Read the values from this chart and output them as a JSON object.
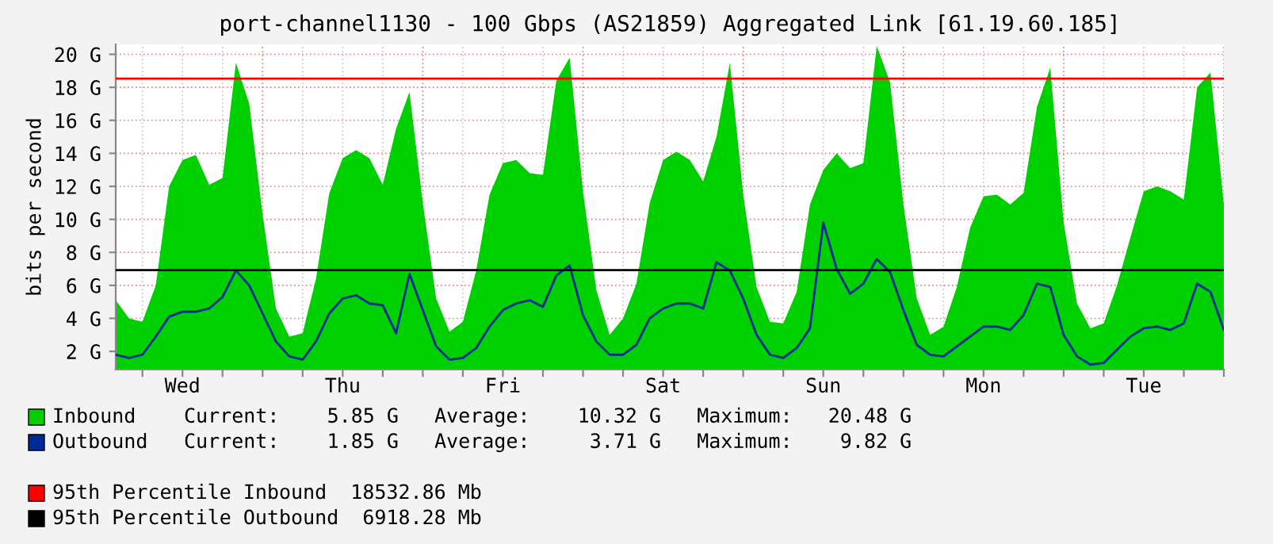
{
  "chart_data": {
    "type": "area",
    "title": "port-channel1130 - 100 Gbps (AS21859) Aggregated Link [61.19.60.185]",
    "ylabel": "bits per second",
    "categories": [
      null,
      null,
      null,
      null,
      null,
      "Wed",
      null,
      null,
      null,
      null,
      null,
      null,
      null,
      null,
      null,
      null,
      null,
      "Thu",
      null,
      null,
      null,
      null,
      null,
      null,
      null,
      null,
      null,
      null,
      null,
      "Fri",
      null,
      null,
      null,
      null,
      null,
      null,
      null,
      null,
      null,
      null,
      null,
      "Sat",
      null,
      null,
      null,
      null,
      null,
      null,
      null,
      null,
      null,
      null,
      null,
      "Sun",
      null,
      null,
      null,
      null,
      null,
      null,
      null,
      null,
      null,
      null,
      null,
      "Mon",
      null,
      null,
      null,
      null,
      null,
      null,
      null,
      null,
      null,
      null,
      null,
      "Tue",
      null,
      null,
      null,
      null,
      null,
      null
    ],
    "series": [
      {
        "name": "Inbound",
        "color": "#00cf00",
        "values": [
          5.1,
          4.0,
          3.8,
          6.0,
          12.0,
          13.6,
          13.9,
          12.1,
          12.5,
          19.5,
          17.0,
          10.3,
          4.6,
          2.9,
          3.1,
          6.4,
          11.6,
          13.7,
          14.2,
          13.7,
          12.1,
          15.5,
          17.7,
          11.0,
          5.2,
          3.2,
          3.8,
          6.9,
          11.5,
          13.4,
          13.6,
          12.8,
          12.7,
          18.4,
          19.8,
          11.7,
          5.7,
          3.0,
          4.0,
          6.1,
          11.0,
          13.6,
          14.1,
          13.6,
          12.3,
          15.0,
          19.5,
          11.5,
          5.9,
          3.8,
          3.7,
          5.6,
          10.9,
          13.0,
          14.0,
          13.1,
          13.4,
          20.5,
          18.3,
          10.9,
          5.2,
          3.0,
          3.5,
          5.9,
          9.5,
          11.4,
          11.5,
          10.9,
          11.6,
          16.8,
          19.2,
          9.8,
          4.9,
          3.4,
          3.7,
          6.0,
          8.9,
          11.7,
          12.0,
          11.7,
          11.2,
          18.0,
          18.9,
          10.9
        ]
      },
      {
        "name": "Outbound",
        "type": "line",
        "color": "#002a97",
        "values": [
          1.8,
          1.6,
          1.8,
          2.9,
          4.1,
          4.4,
          4.4,
          4.6,
          5.3,
          6.9,
          6.0,
          4.3,
          2.6,
          1.7,
          1.5,
          2.6,
          4.3,
          5.2,
          5.4,
          4.9,
          4.8,
          3.1,
          6.7,
          4.5,
          2.3,
          1.5,
          1.6,
          2.2,
          3.5,
          4.5,
          4.9,
          5.1,
          4.7,
          6.6,
          7.2,
          4.2,
          2.6,
          1.8,
          1.8,
          2.4,
          4.0,
          4.6,
          4.9,
          4.9,
          4.6,
          7.4,
          6.9,
          5.2,
          3.0,
          1.8,
          1.6,
          2.2,
          3.4,
          9.8,
          7.0,
          5.5,
          6.1,
          7.6,
          6.8,
          4.5,
          2.4,
          1.8,
          1.7,
          2.3,
          2.9,
          3.5,
          3.5,
          3.3,
          4.2,
          6.1,
          5.9,
          3.0,
          1.7,
          1.2,
          1.3,
          2.1,
          2.9,
          3.4,
          3.5,
          3.3,
          3.7,
          6.1,
          5.6,
          3.3
        ]
      }
    ],
    "annotations": [
      "Current:    5.85 G   Average:    10.32 G   Maximum:   20.48 G",
      "Current:    1.85 G   Average:     3.71 G   Maximum:    9.82 G"
    ],
    "ref_lines": [
      {
        "axis": "y",
        "value": 18.53,
        "label": "95th Percentile Inbound  18532.86 Mb",
        "color": "#ff0000"
      },
      {
        "axis": "y",
        "value": 6.92,
        "label": "95th Percentile Outbound  6918.28 Mb",
        "color": "#000000"
      }
    ],
    "ylim": [
      0.9,
      20.6
    ],
    "yticks": [
      {
        "value": 2,
        "label": "2 G"
      },
      {
        "value": 4,
        "label": "4 G"
      },
      {
        "value": 6,
        "label": "6 G"
      },
      {
        "value": 8,
        "label": "8 G"
      },
      {
        "value": 10,
        "label": "10 G"
      },
      {
        "value": 12,
        "label": "12 G"
      },
      {
        "value": 14,
        "label": "14 G"
      },
      {
        "value": 16,
        "label": "16 G"
      },
      {
        "value": 18,
        "label": "18 G"
      },
      {
        "value": 20,
        "label": "20 G"
      }
    ],
    "grid": true,
    "legend": "bottom"
  }
}
